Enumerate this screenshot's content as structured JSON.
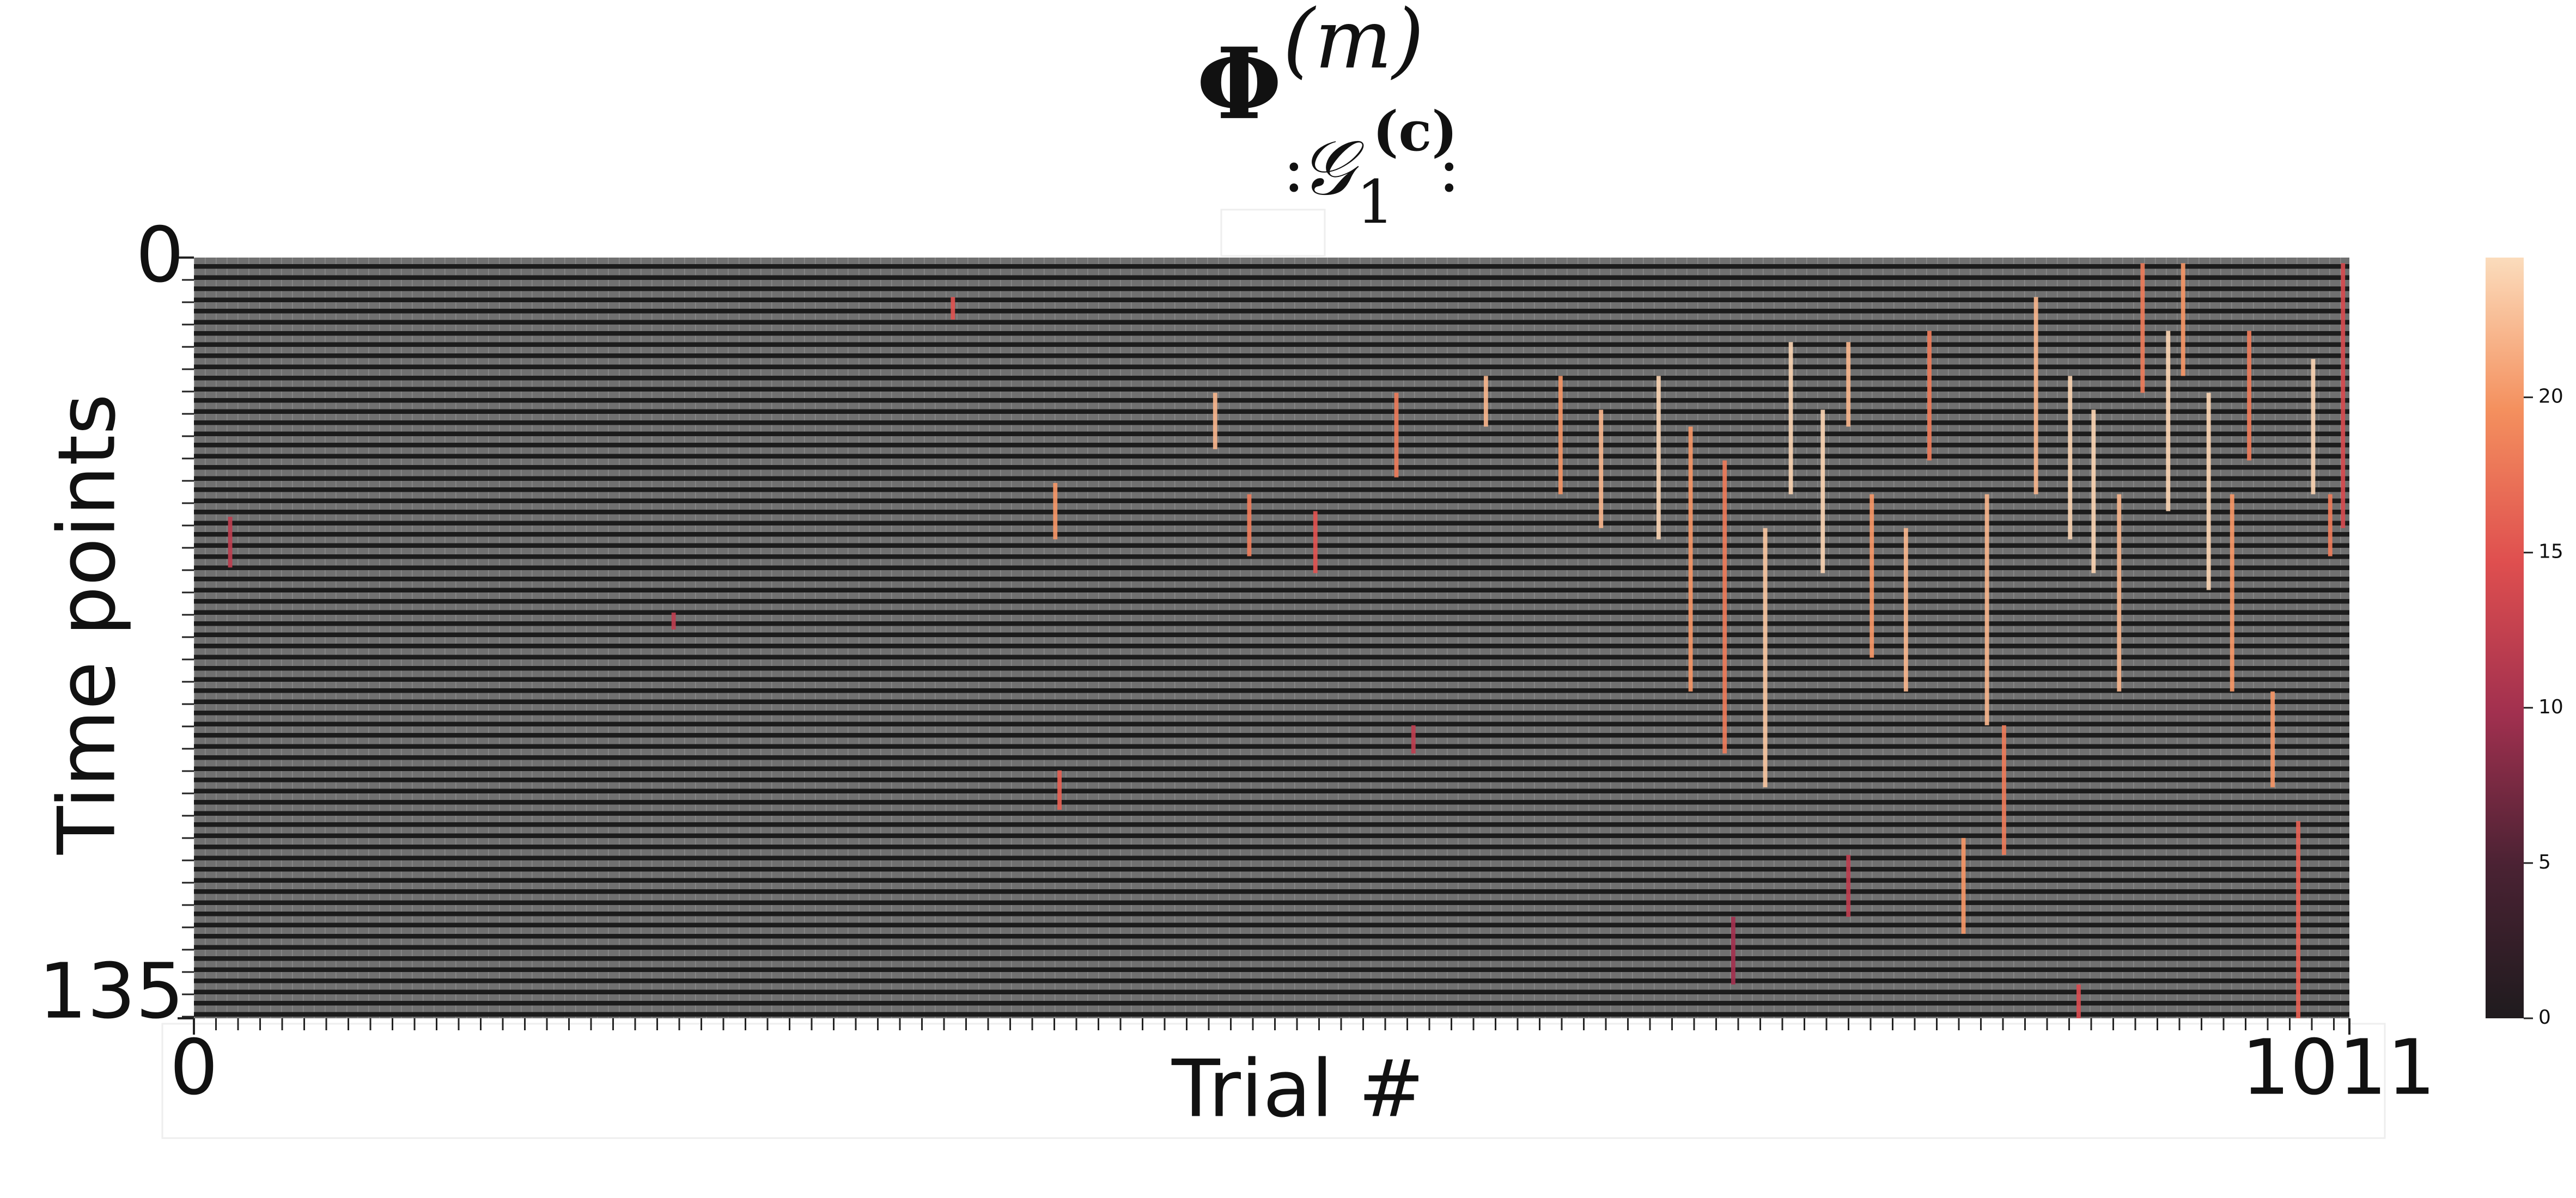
{
  "chart_data": {
    "type": "heatmap",
    "title": {
      "base": "Φ",
      "sup": "(m)"
    },
    "subtitle": {
      "pre": ":",
      "base": "𝒢",
      "sub": "1",
      "sup": "(c)",
      "post": ":"
    },
    "xlabel": "Trial #",
    "ylabel": "Time points",
    "xlim": [
      0,
      1011
    ],
    "ylim": [
      0,
      135
    ],
    "xticks": [
      0,
      1011
    ],
    "yticks": [
      0,
      135
    ],
    "colorbar": {
      "lim": [
        0,
        24.5
      ],
      "ticks": [
        0,
        5,
        10,
        15,
        20
      ],
      "colors": [
        "#1f1b1e",
        "#4a2233",
        "#a1304f",
        "#df4f4f",
        "#f4905e",
        "#fbdcbc"
      ]
    },
    "streaks": {
      "trial": [
        356,
        404,
        17,
        225,
        479,
        495,
        526,
        564,
        606,
        641,
        660,
        687,
        702,
        718,
        737,
        749,
        764,
        776,
        787,
        803,
        814,
        830,
        841,
        849,
        864,
        880,
        891,
        903,
        914,
        926,
        933,
        945,
        956,
        964,
        975,
        987,
        994,
        1002,
        1008,
        722,
        776,
        884,
        406,
        572
      ],
      "start": [
        7,
        40,
        46,
        63,
        24,
        42,
        45,
        24,
        21,
        21,
        27,
        21,
        30,
        36,
        48,
        15,
        27,
        15,
        42,
        48,
        13,
        103,
        42,
        83,
        7,
        21,
        27,
        42,
        1,
        13,
        1,
        24,
        42,
        13,
        77,
        100,
        18,
        42,
        1,
        117,
        106,
        129,
        91,
        83
      ],
      "end": [
        11,
        50,
        55,
        66,
        34,
        53,
        56,
        39,
        30,
        42,
        48,
        50,
        77,
        88,
        94,
        42,
        56,
        30,
        71,
        77,
        36,
        120,
        83,
        106,
        42,
        50,
        56,
        77,
        24,
        45,
        21,
        59,
        77,
        36,
        94,
        135,
        42,
        53,
        48,
        129,
        117,
        135,
        98,
        88
      ],
      "values": [
        15,
        20,
        12,
        12,
        22,
        18,
        15,
        18,
        22,
        20,
        22,
        24,
        20,
        18,
        23,
        24,
        24,
        22,
        20,
        22,
        18,
        20,
        22,
        18,
        22,
        24,
        24,
        22,
        18,
        24,
        20,
        24,
        20,
        18,
        20,
        16,
        24,
        18,
        14,
        10,
        12,
        14,
        16,
        12
      ]
    }
  }
}
